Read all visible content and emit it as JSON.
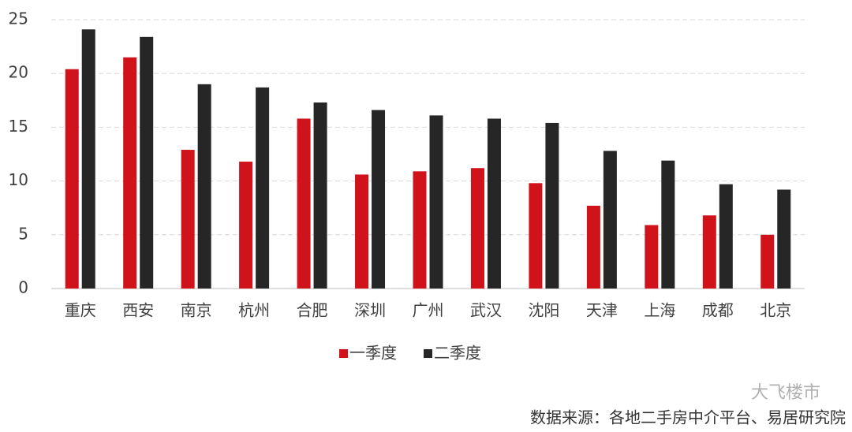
{
  "chart_data": {
    "type": "bar",
    "categories": [
      "重庆",
      "西安",
      "南京",
      "杭州",
      "合肥",
      "深圳",
      "广州",
      "武汉",
      "沈阳",
      "天津",
      "上海",
      "成都",
      "北京"
    ],
    "series": [
      {
        "name": "一季度",
        "color": "#d0121b",
        "values": [
          20.4,
          21.5,
          12.9,
          11.8,
          15.8,
          10.6,
          10.9,
          11.2,
          9.8,
          7.7,
          5.9,
          6.8,
          5.0
        ]
      },
      {
        "name": "二季度",
        "color": "#262626",
        "values": [
          24.1,
          23.4,
          19.0,
          18.7,
          17.3,
          16.6,
          16.1,
          15.8,
          15.4,
          12.8,
          11.9,
          9.7,
          9.2
        ]
      }
    ],
    "ylim": [
      0,
      25
    ],
    "yticks": [
      0,
      5,
      10,
      15,
      20,
      25
    ],
    "grid": true,
    "legend": "bottom",
    "source": "数据来源：各地二手房中介平台、易居研究院",
    "watermark": "大飞楼市"
  }
}
